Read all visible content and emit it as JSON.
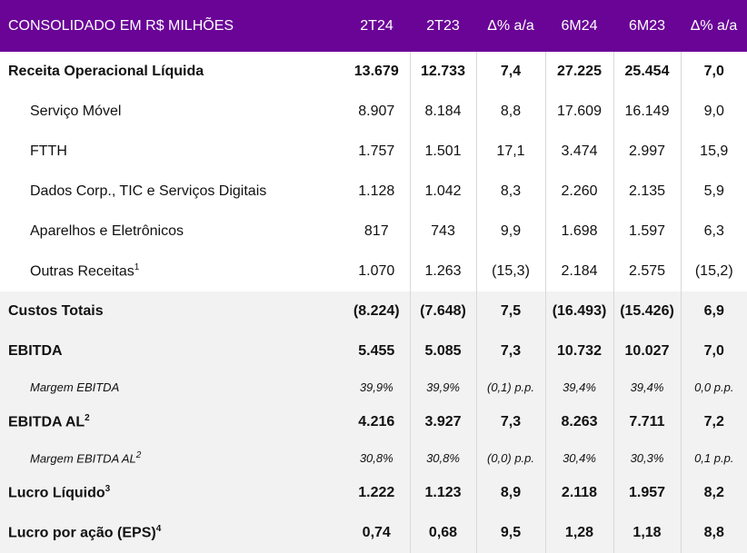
{
  "header": [
    "CONSOLIDADO EM R$ MILHÕES",
    "2T24",
    "2T23",
    "Δ% a/a",
    "6M24",
    "6M23",
    "Δ% a/a"
  ],
  "colors": {
    "header_bg": "#6a0497",
    "gray_row": "#f2f2f2"
  },
  "rows": [
    {
      "label": "Receita Operacional Líquida",
      "sup": "",
      "style": "bold",
      "values": [
        "13.679",
        "12.733",
        "7,4",
        "27.225",
        "25.454",
        "7,0"
      ]
    },
    {
      "label": "Serviço Móvel",
      "sup": "",
      "style": "sub",
      "values": [
        "8.907",
        "8.184",
        "8,8",
        "17.609",
        "16.149",
        "9,0"
      ]
    },
    {
      "label": "FTTH",
      "sup": "",
      "style": "sub",
      "values": [
        "1.757",
        "1.501",
        "17,1",
        "3.474",
        "2.997",
        "15,9"
      ]
    },
    {
      "label": "Dados Corp., TIC e Serviços Digitais",
      "sup": "",
      "style": "sub",
      "values": [
        "1.128",
        "1.042",
        "8,3",
        "2.260",
        "2.135",
        "5,9"
      ]
    },
    {
      "label": "Aparelhos e Eletrônicos",
      "sup": "",
      "style": "sub",
      "values": [
        "817",
        "743",
        "9,9",
        "1.698",
        "1.597",
        "6,3"
      ]
    },
    {
      "label": "Outras Receitas",
      "sup": "1",
      "style": "sub",
      "values": [
        "1.070",
        "1.263",
        "(15,3)",
        "2.184",
        "2.575",
        "(15,2)"
      ]
    },
    {
      "label": "Custos Totais",
      "sup": "",
      "style": "bold gray",
      "values": [
        "(8.224)",
        "(7.648)",
        "7,5",
        "(16.493)",
        "(15.426)",
        "6,9"
      ]
    },
    {
      "label": "EBITDA",
      "sup": "",
      "style": "bold gray",
      "values": [
        "5.455",
        "5.085",
        "7,3",
        "10.732",
        "10.027",
        "7,0"
      ]
    },
    {
      "label": "Margem EBITDA",
      "sup": "",
      "style": "margin gray",
      "values": [
        "39,9%",
        "39,9%",
        "(0,1) p.p.",
        "39,4%",
        "39,4%",
        "0,0 p.p."
      ]
    },
    {
      "label": "EBITDA AL",
      "sup": "2",
      "style": "bold gray",
      "values": [
        "4.216",
        "3.927",
        "7,3",
        "8.263",
        "7.711",
        "7,2"
      ]
    },
    {
      "label": "Margem EBITDA AL",
      "sup": "2",
      "style": "margin gray",
      "values": [
        "30,8%",
        "30,8%",
        "(0,0) p.p.",
        "30,4%",
        "30,3%",
        "0,1 p.p."
      ]
    },
    {
      "label": "Lucro Líquido",
      "sup": "3",
      "style": "bold gray",
      "values": [
        "1.222",
        "1.123",
        "8,9",
        "2.118",
        "1.957",
        "8,2"
      ]
    },
    {
      "label": "Lucro por ação (EPS)",
      "sup": "4",
      "style": "bold gray",
      "values": [
        "0,74",
        "0,68",
        "9,5",
        "1,28",
        "1,18",
        "8,8"
      ]
    }
  ]
}
